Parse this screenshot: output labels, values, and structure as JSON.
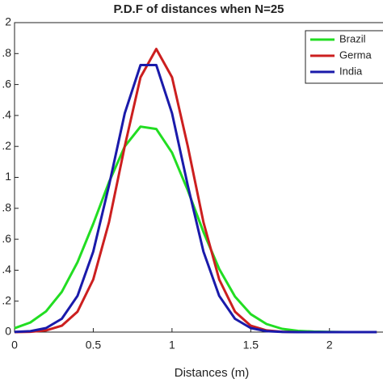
{
  "chart_data": {
    "type": "line",
    "title": "P.D.F of distances when N=25",
    "x_label": "Distances (m)",
    "x": [
      0,
      0.1,
      0.2,
      0.3,
      0.4,
      0.5,
      0.6,
      0.7,
      0.8,
      0.9,
      1.0,
      1.1,
      1.2,
      1.3,
      1.4,
      1.5,
      1.6,
      1.7,
      1.8,
      1.9,
      2.0,
      2.1,
      2.2,
      2.3
    ],
    "series": [
      {
        "name": "Brazil",
        "color": "#22dd22",
        "values": [
          0.025,
          0.062,
          0.134,
          0.26,
          0.451,
          0.7,
          0.969,
          1.2,
          1.328,
          1.313,
          1.16,
          0.916,
          0.647,
          0.408,
          0.23,
          0.116,
          0.052,
          0.021,
          0.008,
          0.003,
          0.001,
          0,
          0,
          0
        ]
      },
      {
        "name": "Germa",
        "color": "#cc1f1f",
        "values": [
          0,
          0.002,
          0.011,
          0.041,
          0.132,
          0.34,
          0.71,
          1.201,
          1.647,
          1.83,
          1.647,
          1.201,
          0.71,
          0.34,
          0.132,
          0.041,
          0.011,
          0.002,
          0,
          0,
          0,
          0,
          0,
          0
        ]
      },
      {
        "name": "India",
        "color": "#1a1aaa",
        "values": [
          0.001,
          0.006,
          0.026,
          0.086,
          0.234,
          0.52,
          0.947,
          1.414,
          1.726,
          1.726,
          1.414,
          0.947,
          0.52,
          0.234,
          0.086,
          0.026,
          0.006,
          0.001,
          0,
          0,
          0,
          0,
          0,
          0
        ]
      }
    ],
    "xlim": [
      0,
      2.34
    ],
    "xticks": [
      0,
      0.5,
      1,
      1.5,
      2
    ],
    "ylim": [
      0,
      2
    ],
    "yticks": [
      0,
      {
        "value": 0.2,
        "label": ".2"
      },
      {
        "value": 0.4,
        "label": ".4"
      },
      {
        "value": 0.6,
        "label": ".6"
      },
      {
        "value": 0.8,
        "label": ".8"
      },
      1,
      {
        "value": 1.2,
        "label": ".2"
      },
      {
        "value": 1.4,
        "label": ".4"
      },
      {
        "value": 1.6,
        "label": ".6"
      },
      {
        "value": 1.8,
        "label": ".8"
      },
      2
    ],
    "legend": "upper right"
  }
}
